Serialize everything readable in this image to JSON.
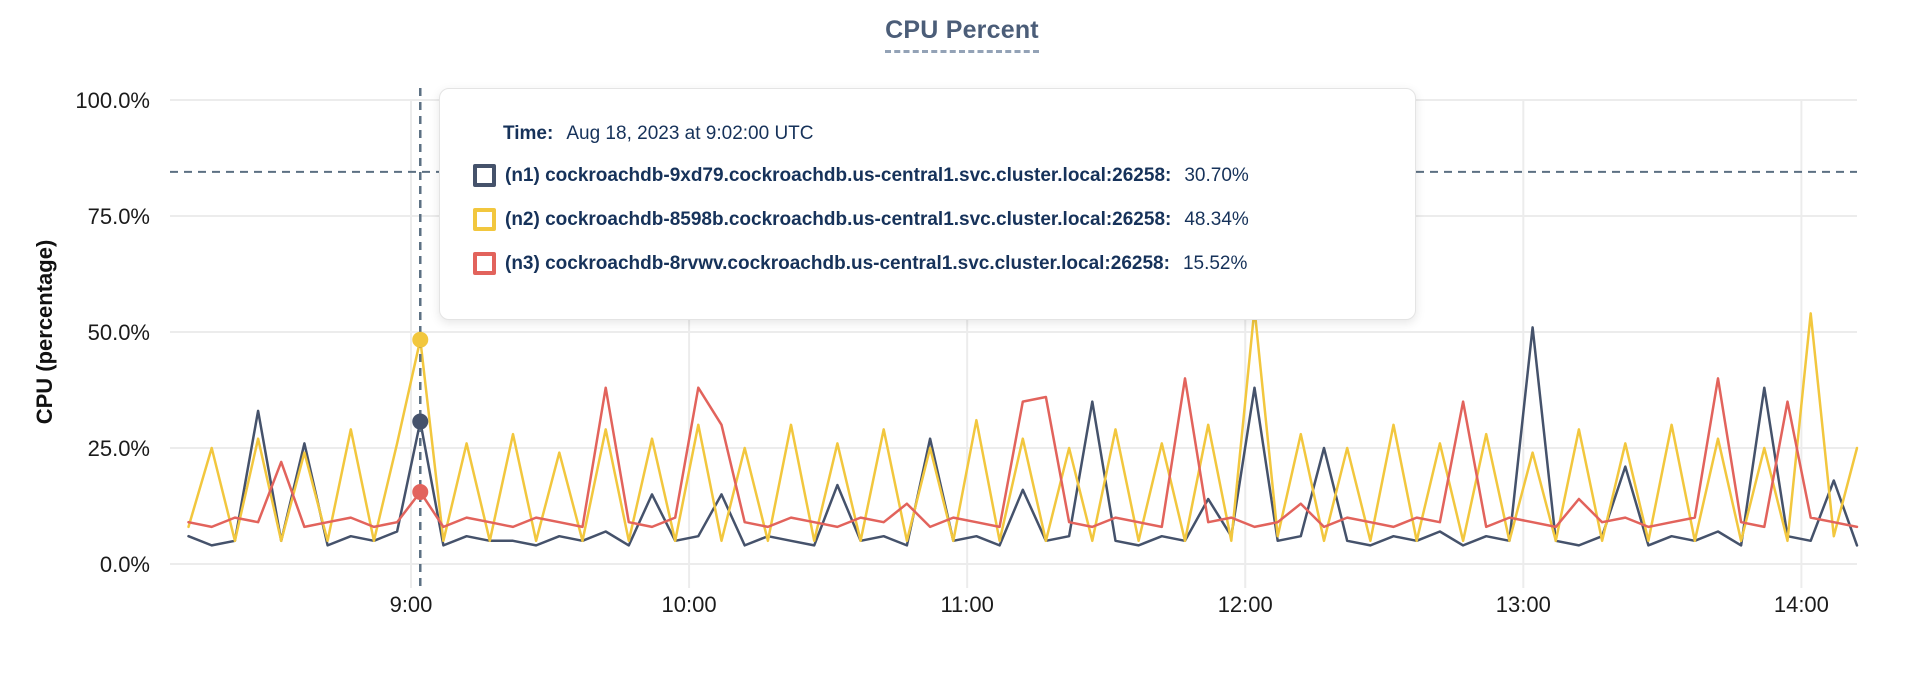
{
  "title": "CPU Percent",
  "colors": {
    "series_n1": "#45526b",
    "series_n2": "#f2c73e",
    "series_n3": "#e2635c",
    "gridline": "#ececec",
    "crosshair": "#5c7083",
    "title_text": "#4b5d78",
    "tooltip_text": "#16325a",
    "axis_text": "#1b1b1b"
  },
  "tooltip": {
    "time_label": "Time:",
    "time_value": "Aug 18, 2023 at 9:02:00 UTC",
    "rows": [
      {
        "id": "n1",
        "name": "(n1) cockroachdb-9xd79.cockroachdb.us-central1.svc.cluster.local:26258:",
        "value": "30.70%",
        "color": "#45526b"
      },
      {
        "id": "n2",
        "name": "(n2) cockroachdb-8598b.cockroachdb.us-central1.svc.cluster.local:26258:",
        "value": "48.34%",
        "color": "#f2c73e"
      },
      {
        "id": "n3",
        "name": "(n3) cockroachdb-8rvwv.cockroachdb.us-central1.svc.cluster.local:26258:",
        "value": "15.52%",
        "color": "#e2635c"
      }
    ]
  },
  "chart_data": {
    "type": "line",
    "title": "CPU Percent",
    "xlabel": "",
    "ylabel": "CPU (percentage)",
    "ylim": [
      0,
      100
    ],
    "grid": true,
    "legend_position": "tooltip-overlay",
    "y_ticks": [
      {
        "label": "0.0%",
        "value": 0
      },
      {
        "label": "25.0%",
        "value": 25
      },
      {
        "label": "50.0%",
        "value": 50
      },
      {
        "label": "75.0%",
        "value": 75
      },
      {
        "label": "100.0%",
        "value": 100
      }
    ],
    "x_ticks": [
      {
        "label": "9:00",
        "minute": 540
      },
      {
        "label": "10:00",
        "minute": 600
      },
      {
        "label": "11:00",
        "minute": 660
      },
      {
        "label": "12:00",
        "minute": 720
      },
      {
        "label": "13:00",
        "minute": 780
      },
      {
        "label": "14:00",
        "minute": 840
      }
    ],
    "x_domain_minutes": [
      488,
      852
    ],
    "x_start_minute": 492,
    "x_step_minutes": 5,
    "series": [
      {
        "id": "n1",
        "name": "cockroachdb-9xd79.cockroachdb.us-central1.svc.cluster.local:26258",
        "color": "#45526b",
        "values": [
          6,
          4,
          5,
          33,
          5,
          26,
          4,
          6,
          5,
          7,
          30.7,
          4,
          6,
          5,
          5,
          4,
          6,
          5,
          7,
          4,
          15,
          5,
          6,
          15,
          4,
          6,
          5,
          4,
          17,
          5,
          6,
          4,
          27,
          5,
          6,
          4,
          16,
          5,
          6,
          35,
          5,
          4,
          6,
          5,
          14,
          6,
          38,
          5,
          6,
          25,
          5,
          4,
          6,
          5,
          7,
          4,
          6,
          5,
          51,
          5,
          4,
          6,
          21,
          4,
          6,
          5,
          7,
          4,
          38,
          6,
          5,
          18,
          4
        ]
      },
      {
        "id": "n2",
        "name": "cockroachdb-8598b.cockroachdb.us-central1.svc.cluster.local:26258",
        "color": "#f2c73e",
        "values": [
          8,
          25,
          5,
          27,
          5,
          24,
          5,
          29,
          5,
          26,
          48.34,
          5,
          26,
          5,
          28,
          5,
          24,
          5,
          29,
          5,
          27,
          5,
          30,
          5,
          25,
          5,
          30,
          5,
          26,
          5,
          29,
          5,
          25,
          5,
          31,
          5,
          27,
          5,
          25,
          5,
          29,
          5,
          26,
          5,
          30,
          5,
          55,
          6,
          28,
          5,
          25,
          5,
          30,
          5,
          26,
          5,
          28,
          5,
          24,
          5,
          29,
          5,
          26,
          5,
          30,
          5,
          27,
          5,
          25,
          5,
          54,
          6,
          25
        ]
      },
      {
        "id": "n3",
        "name": "cockroachdb-8rvwv.cockroachdb.us-central1.svc.cluster.local:26258",
        "color": "#e2635c",
        "values": [
          9,
          8,
          10,
          9,
          22,
          8,
          9,
          10,
          8,
          9,
          15.52,
          8,
          10,
          9,
          8,
          10,
          9,
          8,
          38,
          9,
          8,
          10,
          38,
          30,
          9,
          8,
          10,
          9,
          8,
          10,
          9,
          13,
          8,
          10,
          9,
          8,
          35,
          36,
          9,
          8,
          10,
          9,
          8,
          40,
          9,
          10,
          8,
          9,
          13,
          8,
          10,
          9,
          8,
          10,
          9,
          35,
          8,
          10,
          9,
          8,
          14,
          9,
          10,
          8,
          9,
          10,
          40,
          9,
          8,
          35,
          10,
          9,
          8
        ]
      }
    ],
    "hover": {
      "minute": 542,
      "time_label": "Aug 18, 2023 at 9:02:00 UTC",
      "horizontal_line_percent": 84.5,
      "points": [
        {
          "series": "n1",
          "percent": 30.7
        },
        {
          "series": "n2",
          "percent": 48.34
        },
        {
          "series": "n3",
          "percent": 15.52
        }
      ]
    }
  }
}
